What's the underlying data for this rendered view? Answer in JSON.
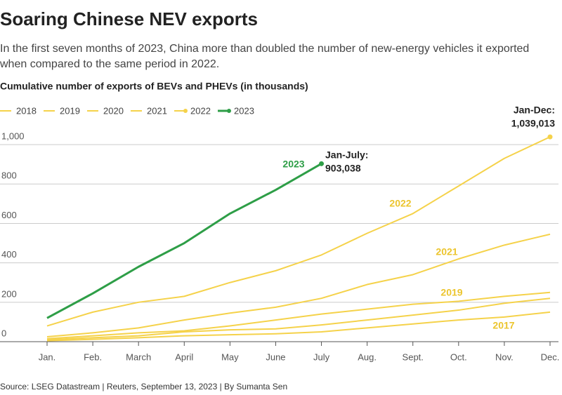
{
  "chart_data": {
    "type": "line",
    "title": "Soaring Chinese NEV exports",
    "subtitle": [
      "In the first seven months of 2023, China more than doubled the number of new-energy vehicles it exported",
      "when compared to the same period in 2022."
    ],
    "axis_title": "Cumulative number of exports of BEVs and PHEVs (in thousands)",
    "categories": [
      "Jan.",
      "Feb.",
      "March",
      "April",
      "May",
      "June",
      "July",
      "Aug.",
      "Sept.",
      "Oct.",
      "Nov.",
      "Dec."
    ],
    "series": [
      {
        "name": "2018",
        "color": "#f5d24a",
        "marker": false,
        "values": [
          5,
          12,
          20,
          30,
          35,
          40,
          50,
          70,
          90,
          110,
          125,
          150
        ]
      },
      {
        "name": "2019",
        "color": "#f5d24a",
        "marker": false,
        "values": [
          15,
          30,
          45,
          55,
          80,
          110,
          140,
          165,
          190,
          205,
          230,
          250
        ]
      },
      {
        "name": "2020",
        "color": "#f5d24a",
        "marker": false,
        "values": [
          10,
          20,
          30,
          50,
          60,
          65,
          85,
          110,
          135,
          160,
          195,
          220
        ]
      },
      {
        "name": "2021",
        "color": "#f5d24a",
        "marker": false,
        "values": [
          25,
          45,
          70,
          110,
          145,
          175,
          220,
          290,
          340,
          420,
          490,
          545
        ]
      },
      {
        "name": "2022",
        "color": "#f5d24a",
        "marker": true,
        "values": [
          80,
          150,
          200,
          230,
          300,
          360,
          440,
          550,
          650,
          790,
          930,
          1039.013
        ]
      },
      {
        "name": "2023",
        "color": "#2e9e47",
        "marker": true,
        "values": [
          120,
          245,
          380,
          500,
          650,
          770,
          903.038,
          null,
          null,
          null,
          null,
          null
        ]
      }
    ],
    "line_labels": [
      {
        "text": "2023",
        "color": "#2e9e47"
      },
      {
        "text": "2022",
        "color": "#ecc52e"
      },
      {
        "text": "2021",
        "color": "#ecc52e"
      },
      {
        "text": "2019",
        "color": "#ecc52e"
      },
      {
        "text": "2017",
        "color": "#ecc52e"
      }
    ],
    "annotations": [
      {
        "lines": [
          "Jan-July:",
          "903,038"
        ]
      },
      {
        "lines": [
          "Jan-Dec:",
          "1,039,013"
        ]
      }
    ],
    "ylim": [
      0,
      1100
    ],
    "yticks": [
      0,
      200,
      400,
      600,
      800,
      {
        "value": 1000,
        "label": "1,000"
      }
    ],
    "grid": true,
    "source": "Source: LSEG Datastream | Reuters, September 13, 2023 | By Sumanta Sen"
  }
}
